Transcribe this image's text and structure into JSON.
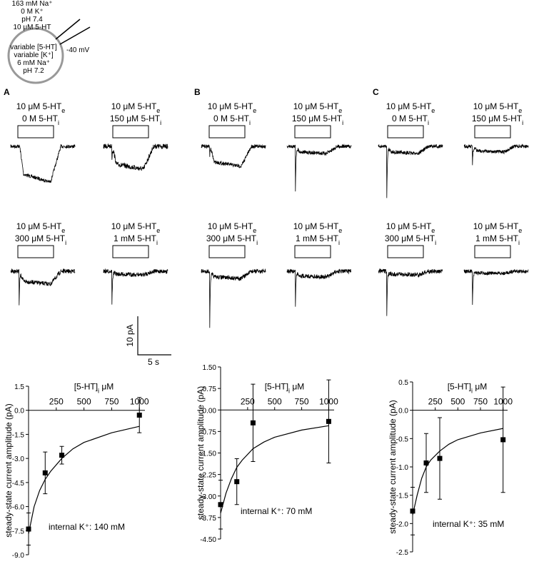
{
  "schematic": {
    "outside": [
      "163 mM Na⁺",
      "0 M K⁺",
      "pH 7.4",
      "10 μM 5-HT"
    ],
    "inside": [
      "variable [5-HT]",
      "variable [K⁺]",
      "6 mM Na⁺",
      "pH 7.2"
    ],
    "voltage": "-40 mV"
  },
  "panels": [
    {
      "label": "A",
      "traces": [
        {
          "line1": {
            "text": "10 μM 5-HT",
            "sub": "e"
          },
          "line2": {
            "text": "0 M 5-HT",
            "sub": "i"
          }
        },
        {
          "line1": {
            "text": "10 μM 5-HT",
            "sub": "e"
          },
          "line2": {
            "text": "150 μM 5-HT",
            "sub": "i"
          }
        },
        {
          "line1": {
            "text": "10 μM 5-HT",
            "sub": "e"
          },
          "line2": {
            "text": "300 μM 5-HT",
            "sub": "i"
          }
        },
        {
          "line1": {
            "text": "10 μM 5-HT",
            "sub": "e"
          },
          "line2": {
            "text": "1 mM 5-HT",
            "sub": "i"
          }
        }
      ]
    },
    {
      "label": "B",
      "traces": [
        {
          "line1": {
            "text": "10 μM 5-HT",
            "sub": "e"
          },
          "line2": {
            "text": "0 M 5-HT",
            "sub": "i"
          }
        },
        {
          "line1": {
            "text": "10 μM 5-HT",
            "sub": "e"
          },
          "line2": {
            "text": "150 μM 5-HT",
            "sub": "i"
          }
        },
        {
          "line1": {
            "text": "10 μM 5-HT",
            "sub": "e"
          },
          "line2": {
            "text": "300 μM 5-HT",
            "sub": "i"
          }
        },
        {
          "line1": {
            "text": "10 μM 5-HT",
            "sub": "e"
          },
          "line2": {
            "text": "1 mM 5-HT",
            "sub": "i"
          }
        }
      ]
    },
    {
      "label": "C",
      "traces": [
        {
          "line1": {
            "text": "10 μM 5-HT",
            "sub": "e"
          },
          "line2": {
            "text": "0 M 5-HT",
            "sub": "i"
          }
        },
        {
          "line1": {
            "text": "10 μM 5-HT",
            "sub": "e"
          },
          "line2": {
            "text": "150 μM 5-HT",
            "sub": "i"
          }
        },
        {
          "line1": {
            "text": "10 μM 5-HT",
            "sub": "e"
          },
          "line2": {
            "text": "300 μM 5-HT",
            "sub": "i"
          }
        },
        {
          "line1": {
            "text": "10 μM 5-HT",
            "sub": "e"
          },
          "line2": {
            "text": "1 mM 5-HT",
            "sub": "i"
          }
        }
      ]
    }
  ],
  "scale_bar": {
    "current": "10 pA",
    "time": "5 s"
  },
  "chart_data": [
    {
      "type": "scatter",
      "xlabel": {
        "text": "[5-HT]",
        "sub": "i",
        "after": " μM"
      },
      "ylabel": "steady-state current amplitude (pA)",
      "annotation": "internal K⁺: 140 mM",
      "x": [
        0,
        150,
        300,
        1000
      ],
      "series": [
        {
          "values": [
            -7.4,
            -3.9,
            -2.8,
            -0.3
          ],
          "errors": [
            1.0,
            1.3,
            0.55,
            1.1
          ],
          "color": "#000000"
        }
      ],
      "fit": {
        "x": [
          0,
          50,
          100,
          150,
          200,
          300,
          400,
          500,
          750,
          1000
        ],
        "values": [
          -7.7,
          -6.0,
          -5.0,
          -4.3,
          -3.8,
          -3.0,
          -2.4,
          -2.0,
          -1.4,
          -1.0
        ]
      },
      "xlim": [
        0,
        1050
      ],
      "ylim": [
        -9,
        1.5
      ],
      "xticks": [
        250,
        500,
        750,
        1000
      ],
      "yticks": [
        1.5,
        {
          "value": 0,
          "label": "0.0"
        },
        -1.5,
        {
          "value": -3,
          "label": "-3.0"
        },
        -4.5,
        {
          "value": -6,
          "label": "-6.0"
        },
        -7.5,
        {
          "value": -9,
          "label": "-9.0"
        }
      ]
    },
    {
      "type": "scatter",
      "xlabel": {
        "text": "[5-HT]",
        "sub": "i",
        "after": " μM"
      },
      "ylabel": "steady-state current amplitude (pA)",
      "annotation": "internal K⁺: 70 mM",
      "x": [
        0,
        150,
        300,
        1000
      ],
      "series": [
        {
          "values": [
            -3.3,
            -2.5,
            -0.45,
            -0.4
          ],
          "errors": [
            0.85,
            0.8,
            1.35,
            1.45
          ],
          "color": "#000000"
        }
      ],
      "fit": {
        "x": [
          0,
          50,
          100,
          150,
          200,
          300,
          400,
          500,
          750,
          1000
        ],
        "values": [
          -3.6,
          -2.9,
          -2.4,
          -2.0,
          -1.75,
          -1.35,
          -1.12,
          -0.95,
          -0.7,
          -0.55
        ]
      },
      "xlim": [
        0,
        1050
      ],
      "ylim": [
        -4.5,
        1.5
      ],
      "xticks": [
        250,
        500,
        750,
        1000
      ],
      "yticks": [
        {
          "value": 1.5,
          "label": "1.50"
        },
        0.75,
        {
          "value": 0,
          "label": "0.00"
        },
        -0.75,
        {
          "value": -1.5,
          "label": "-1.50"
        },
        -2.25,
        {
          "value": -3,
          "label": "-3.00"
        },
        -3.75,
        {
          "value": -4.5,
          "label": "-4.50"
        }
      ]
    },
    {
      "type": "scatter",
      "xlabel": {
        "text": "[5-HT]",
        "sub": "i",
        "after": " μM"
      },
      "ylabel": "steady-state current amplitude (pA)",
      "annotation": "internal K⁺: 35 mM",
      "x": [
        0,
        150,
        300,
        1000
      ],
      "series": [
        {
          "values": [
            -1.78,
            -0.93,
            -0.85,
            -0.52
          ],
          "errors": [
            0.42,
            0.52,
            0.72,
            0.93
          ],
          "color": "#000000"
        }
      ],
      "fit": {
        "x": [
          0,
          50,
          100,
          150,
          200,
          300,
          400,
          500,
          750,
          1000
        ],
        "values": [
          -1.85,
          -1.5,
          -1.2,
          -1.0,
          -0.88,
          -0.72,
          -0.6,
          -0.52,
          -0.4,
          -0.32
        ]
      },
      "xlim": [
        0,
        1050
      ],
      "ylim": [
        -2.5,
        0.5
      ],
      "xticks": [
        250,
        500,
        750,
        1000
      ],
      "yticks": [
        0.5,
        {
          "value": 0,
          "label": "0.0"
        },
        -0.5,
        {
          "value": -1,
          "label": "-1.0"
        },
        -1.5,
        {
          "value": -2,
          "label": "-2.0"
        },
        -2.5
      ]
    }
  ]
}
